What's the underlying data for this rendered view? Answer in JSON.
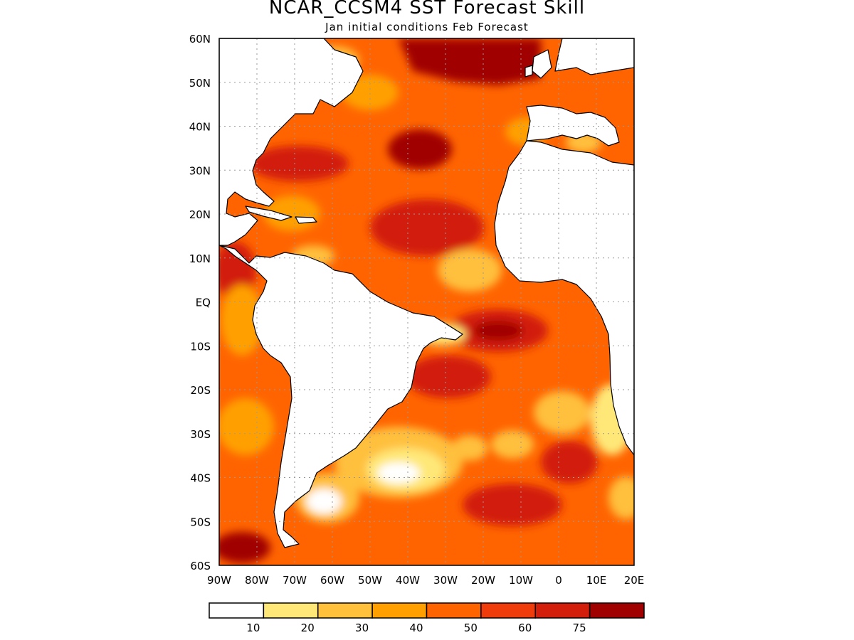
{
  "title": "NCAR_CCSM4 SST Forecast Skill",
  "subtitle": "Jan initial conditions  Feb Forecast",
  "map": {
    "lat_ticks": [
      "60N",
      "50N",
      "40N",
      "30N",
      "20N",
      "10N",
      "EQ",
      "10S",
      "20S",
      "30S",
      "40S",
      "50S",
      "60S"
    ],
    "lon_ticks": [
      "90W",
      "80W",
      "70W",
      "60W",
      "50W",
      "40W",
      "30W",
      "20W",
      "10W",
      "0",
      "10E",
      "20E"
    ],
    "lat_range": [
      -60,
      60
    ],
    "lon_range": [
      -90,
      20
    ],
    "grid": "dotted",
    "land_color": "#ffffff"
  },
  "legend": {
    "colors": [
      "#ffffff",
      "#ffe878",
      "#ffc03c",
      "#ffa000",
      "#ff6400",
      "#f03c0a",
      "#d21e0a",
      "#a00000"
    ],
    "labels": [
      "10",
      "20",
      "30",
      "40",
      "50",
      "60",
      "75"
    ]
  }
}
